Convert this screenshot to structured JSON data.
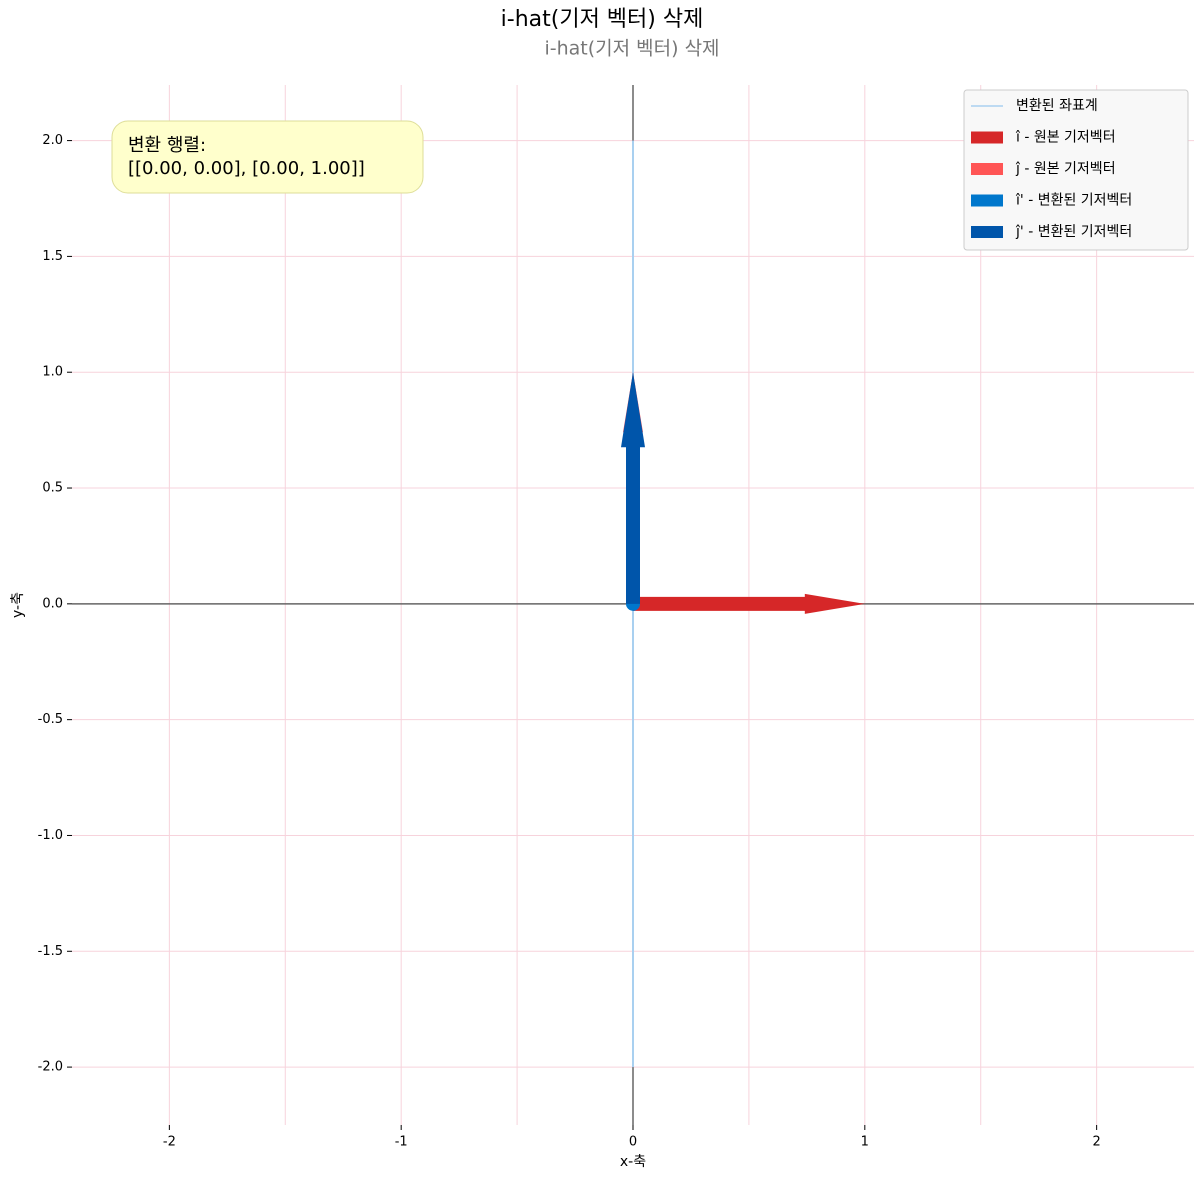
{
  "chart_data": {
    "type": "vector",
    "title": "i-hat(기저 벡터) 삭제",
    "subtitle": "i-hat(기저 벡터) 삭제",
    "x_label": "x-축",
    "y_label": "y-축",
    "xlim": [
      -2.42,
      2.42
    ],
    "ylim": [
      -2.25,
      2.24
    ],
    "xticks": [
      -2,
      -1,
      0,
      1,
      2
    ],
    "x_minor_ticks": [
      -1.5,
      -0.5,
      0.5,
      1.5
    ],
    "yticks": [
      {
        "value": -2,
        "label": "-2.0"
      },
      -1.5,
      {
        "value": -1,
        "label": "-1.0"
      },
      -0.5,
      {
        "value": 0,
        "label": "0.0"
      },
      0.5,
      {
        "value": 1,
        "label": "1.0"
      },
      1.5,
      {
        "value": 2,
        "label": "2.0"
      }
    ],
    "grid": true,
    "grid_color": "#f7d3dc",
    "legend": "upper right",
    "annotation": [
      "변환 행렬:",
      "[[0.00, 0.00], [0.00, 1.00]]"
    ],
    "transformed_grid": {
      "name": "변환된 좌표계",
      "color": "#a9d0f0",
      "x": [
        0,
        0
      ],
      "y": [
        -2,
        2
      ]
    },
    "series": [
      {
        "name": "î - 원본 기저벡터",
        "color": "#d62728",
        "x": 1,
        "y": 0
      },
      {
        "name": "ĵ - 원본 기저벡터",
        "color": "#ff5555",
        "x": 0,
        "y": 1
      },
      {
        "name": "î'  - 변환된 기저벡터",
        "color": "#0077cc",
        "x": 0,
        "y": 0
      },
      {
        "name": "ĵ'  - 변환된 기저벡터",
        "color": "#0055aa",
        "x": 0,
        "y": 1
      }
    ]
  }
}
